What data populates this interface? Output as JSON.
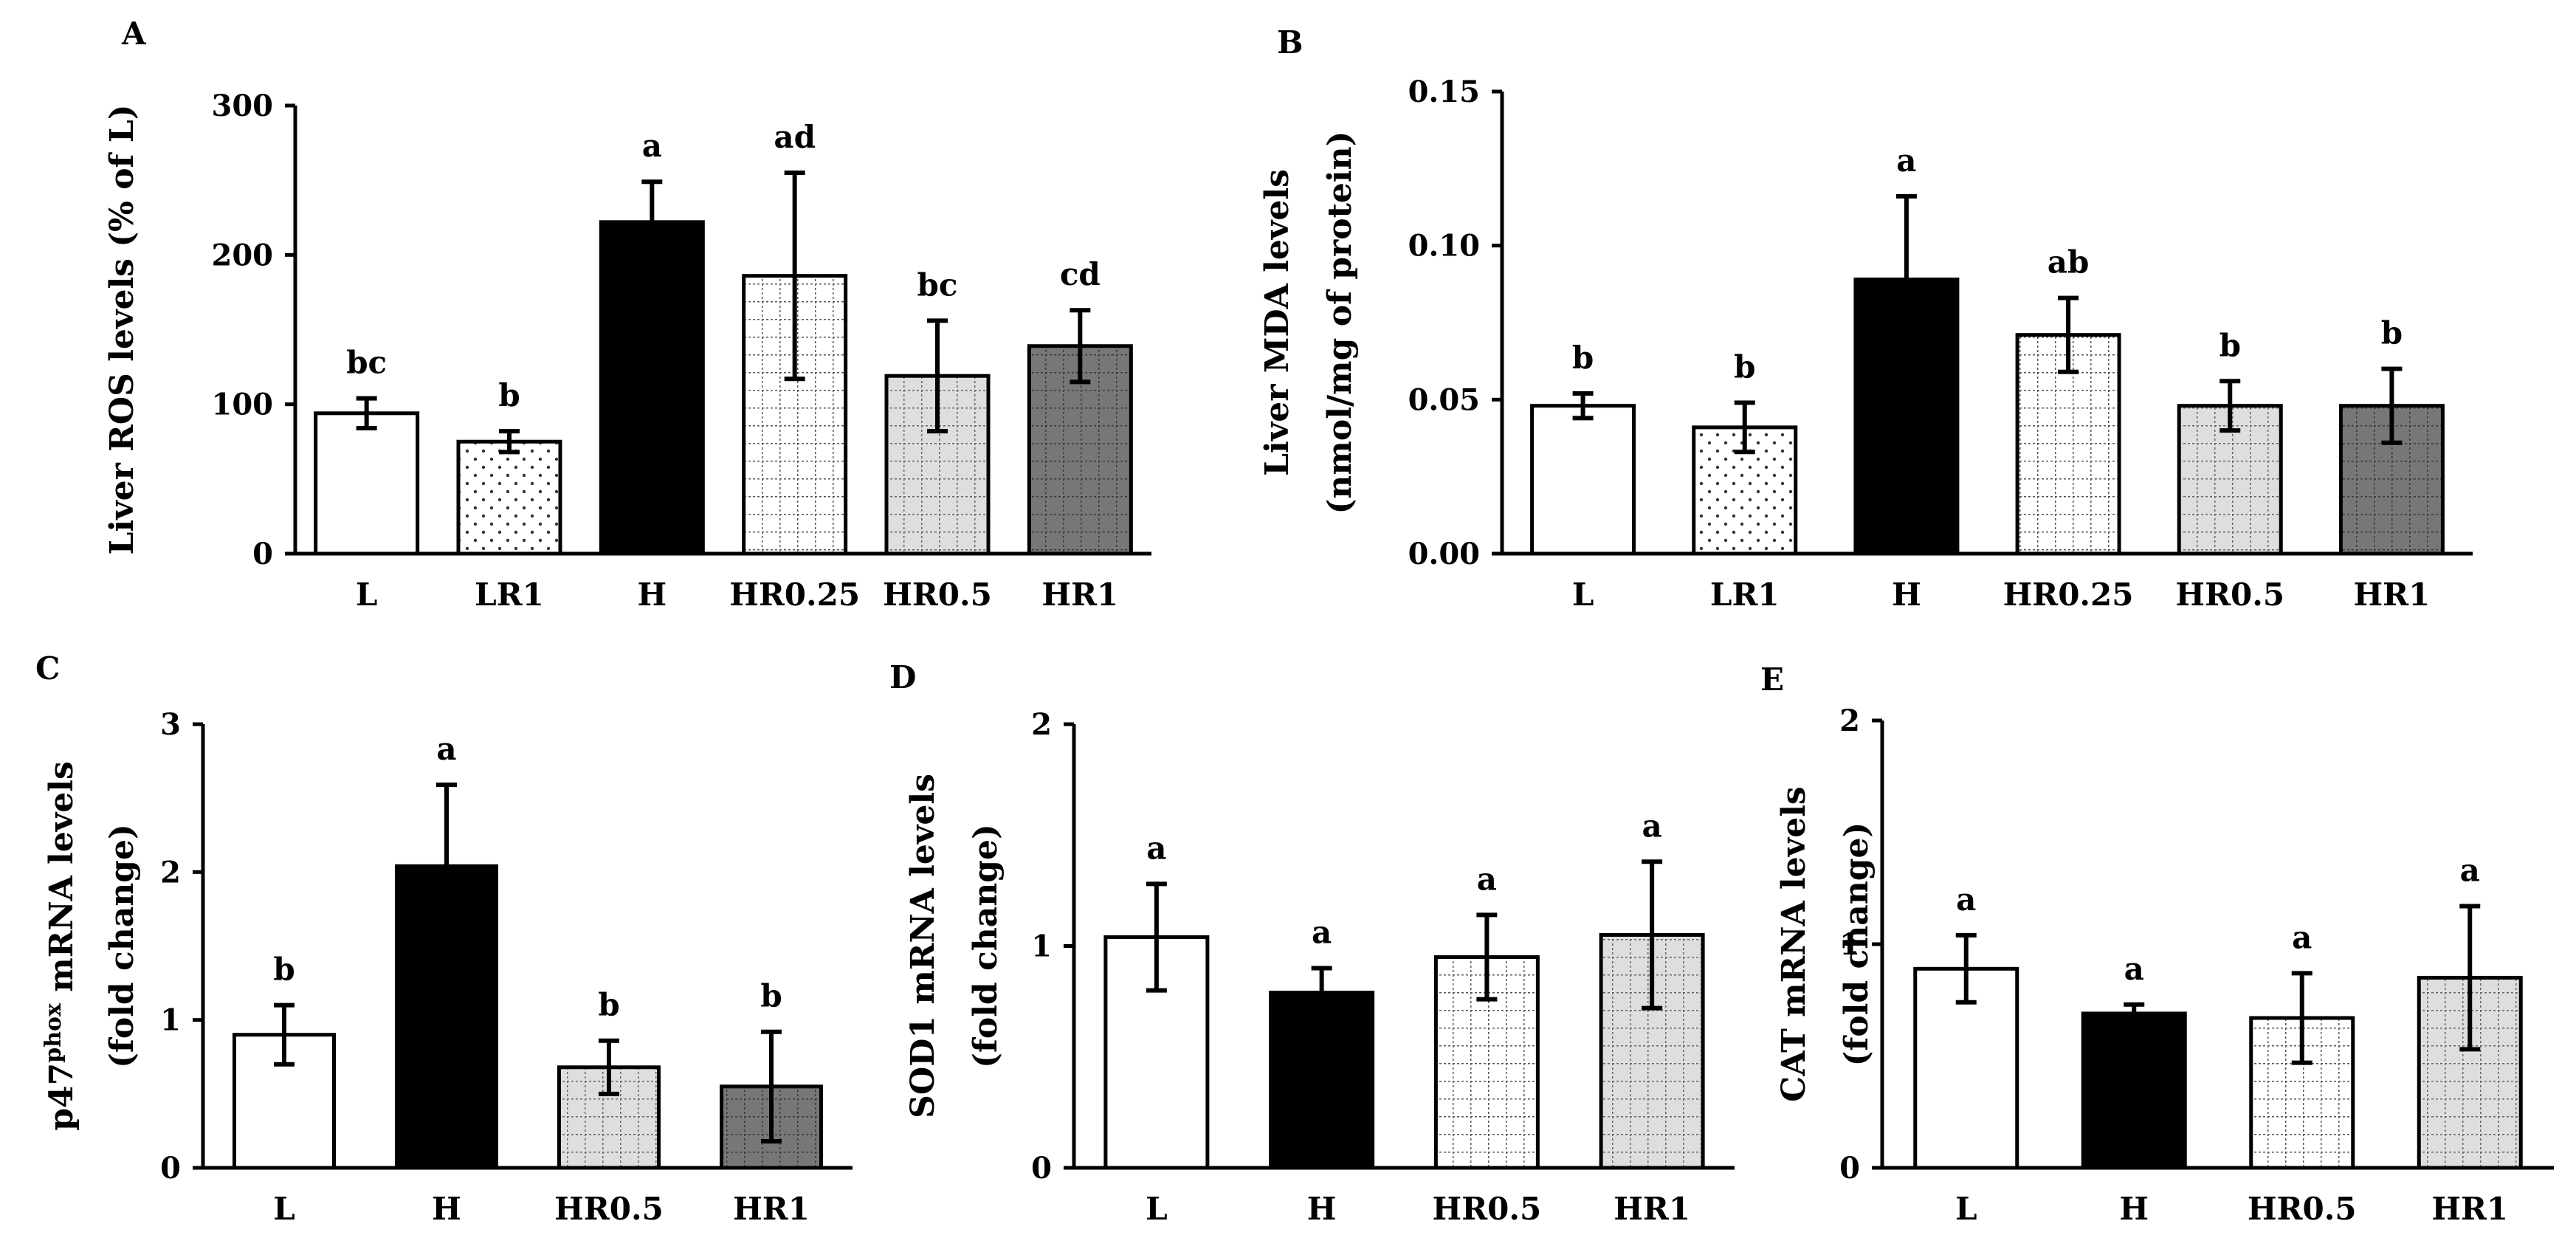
{
  "colors": {
    "ink": "#000000",
    "white": "#ffffff",
    "light_gray": "#dedede",
    "dark_gray": "#777777"
  },
  "chart_data": [
    {
      "id": "A",
      "panel_label": "A",
      "type": "bar",
      "title": "",
      "ylabel": [
        "Liver ROS levels (% of L)"
      ],
      "ylim": [
        0,
        300
      ],
      "yticks": [
        0,
        100,
        200,
        300
      ],
      "ytick_labels": [
        "0",
        "100",
        "200",
        "300"
      ],
      "categories": [
        "L",
        "LR1",
        "H",
        "HR0.25",
        "HR0.5",
        "HR1"
      ],
      "values": [
        94,
        75,
        222,
        186,
        119,
        139
      ],
      "errors": [
        10,
        7,
        27,
        69,
        37,
        24
      ],
      "significance": [
        "bc",
        "b",
        "a",
        "ad",
        "bc",
        "cd"
      ],
      "fills": [
        "white",
        "dots",
        "black",
        "grid-white",
        "grid-gray",
        "grid-dark"
      ]
    },
    {
      "id": "B",
      "panel_label": "B",
      "type": "bar",
      "title": "",
      "ylabel": [
        "Liver MDA levels",
        "(nmol/mg of protein)"
      ],
      "ylim": [
        0,
        0.15
      ],
      "yticks": [
        0,
        0.05,
        0.1,
        0.15
      ],
      "ytick_labels": [
        "0.00",
        "0.05",
        "0.10",
        "0.15"
      ],
      "categories": [
        "L",
        "LR1",
        "H",
        "HR0.25",
        "HR0.5",
        "HR1"
      ],
      "values": [
        0.048,
        0.041,
        0.089,
        0.071,
        0.048,
        0.048
      ],
      "errors": [
        0.004,
        0.008,
        0.027,
        0.012,
        0.008,
        0.012
      ],
      "significance": [
        "b",
        "b",
        "a",
        "ab",
        "b",
        "b"
      ],
      "fills": [
        "white",
        "dots",
        "black",
        "grid-white",
        "grid-gray",
        "grid-dark"
      ]
    },
    {
      "id": "C",
      "panel_label": "C",
      "type": "bar",
      "title": "",
      "ylabel": [
        "p47",
        "phox",
        " mRNA levels",
        "(fold change)"
      ],
      "ylim": [
        0,
        3
      ],
      "yticks": [
        0,
        1,
        2,
        3
      ],
      "ytick_labels": [
        "0",
        "1",
        "2",
        "3"
      ],
      "categories": [
        "L",
        "H",
        "HR0.5",
        "HR1"
      ],
      "values": [
        0.9,
        2.04,
        0.68,
        0.55
      ],
      "errors": [
        0.2,
        0.55,
        0.18,
        0.37
      ],
      "significance": [
        "b",
        "a",
        "b",
        "b"
      ],
      "fills": [
        "white",
        "black",
        "grid-gray",
        "grid-dark"
      ]
    },
    {
      "id": "D",
      "panel_label": "D",
      "type": "bar",
      "title": "",
      "ylabel": [
        "SOD1 mRNA levels",
        "(fold change)"
      ],
      "ylim": [
        0,
        2
      ],
      "yticks": [
        0,
        1,
        2
      ],
      "ytick_labels": [
        "0",
        "1",
        "2"
      ],
      "categories": [
        "L",
        "H",
        "HR0.5",
        "HR1"
      ],
      "values": [
        1.04,
        0.79,
        0.95,
        1.05
      ],
      "errors": [
        0.24,
        0.11,
        0.19,
        0.33
      ],
      "significance": [
        "a",
        "a",
        "a",
        "a"
      ],
      "fills": [
        "white",
        "black",
        "grid-white",
        "grid-gray"
      ]
    },
    {
      "id": "E",
      "panel_label": "E",
      "type": "bar",
      "title": "",
      "ylabel": [
        "CAT mRNA levels",
        "(fold change)"
      ],
      "ylim": [
        0,
        2
      ],
      "yticks": [
        0,
        1,
        2
      ],
      "ytick_labels": [
        "0",
        "1",
        "2"
      ],
      "categories": [
        "L",
        "H",
        "HR0.5",
        "HR1"
      ],
      "values": [
        0.89,
        0.69,
        0.67,
        0.85
      ],
      "errors": [
        0.15,
        0.04,
        0.2,
        0.32
      ],
      "significance": [
        "a",
        "a",
        "a",
        "a"
      ],
      "fills": [
        "white",
        "black",
        "grid-white",
        "grid-gray"
      ]
    }
  ]
}
